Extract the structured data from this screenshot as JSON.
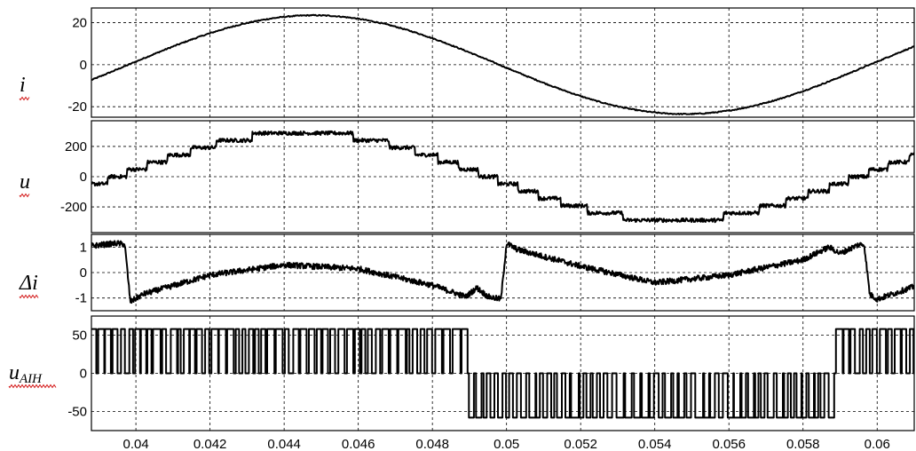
{
  "chart_data": {
    "type": "line",
    "x_range": [
      0.0388,
      0.061
    ],
    "x_ticks": [
      0.04,
      0.042,
      0.044,
      0.046,
      0.048,
      0.05,
      0.052,
      0.054,
      0.056,
      0.058,
      0.06
    ],
    "x_tick_labels": [
      "0.04",
      "0.042",
      "0.044",
      "0.046",
      "0.048",
      "0.05",
      "0.052",
      "0.054",
      "0.056",
      "0.058",
      "0.06"
    ],
    "grid": true,
    "panels": [
      {
        "label": "i",
        "label_sub": "",
        "ylim": [
          -25,
          27
        ],
        "y_ticks": [
          20,
          0,
          -20
        ],
        "y_tick_labels": [
          "20",
          "0",
          "-20"
        ],
        "series": [
          {
            "kind": "sine",
            "amplitude": 23.5,
            "frequency_hz": 50,
            "zero_crossing": 0.0398,
            "ripple": 0.5
          }
        ]
      },
      {
        "label": "u",
        "label_sub": "",
        "ylim": [
          -370,
          370
        ],
        "y_ticks": [
          200,
          0,
          -200
        ],
        "y_tick_labels": [
          "200",
          "0",
          "-200"
        ],
        "series": [
          {
            "kind": "staircase",
            "amplitude": 290,
            "frequency_hz": 50,
            "zero_crossing": 0.0395,
            "step": 48,
            "ripple": 25
          }
        ]
      },
      {
        "label": "Δi",
        "label_sub": "",
        "ylim": [
          -1.5,
          1.5
        ],
        "y_ticks": [
          1,
          0,
          -1
        ],
        "y_tick_labels": [
          "1",
          "0",
          "-1"
        ],
        "series": [
          {
            "kind": "ripple",
            "points": [
              [
                0.0388,
                1.05
              ],
              [
                0.0395,
                1.15
              ],
              [
                0.0397,
                1.1
              ],
              [
                0.03985,
                -1.15
              ],
              [
                0.0402,
                -0.85
              ],
              [
                0.042,
                -0.1
              ],
              [
                0.044,
                0.3
              ],
              [
                0.046,
                0.15
              ],
              [
                0.048,
                -0.5
              ],
              [
                0.0489,
                -0.95
              ],
              [
                0.0492,
                -0.6
              ],
              [
                0.0495,
                -0.95
              ],
              [
                0.04985,
                -1.05
              ],
              [
                0.05,
                1.15
              ],
              [
                0.0503,
                0.9
              ],
              [
                0.052,
                0.25
              ],
              [
                0.054,
                -0.4
              ],
              [
                0.056,
                -0.1
              ],
              [
                0.058,
                0.5
              ],
              [
                0.0587,
                1.0
              ],
              [
                0.059,
                0.75
              ],
              [
                0.0595,
                1.1
              ],
              [
                0.05965,
                1.1
              ],
              [
                0.0598,
                -0.85
              ],
              [
                0.06,
                -1.05
              ],
              [
                0.061,
                -0.55
              ]
            ],
            "band": 0.22
          }
        ]
      },
      {
        "label": "u",
        "label_sub": "AIH",
        "ylim": [
          -75,
          75
        ],
        "y_ticks": [
          50,
          0,
          -50
        ],
        "y_tick_labels": [
          "50",
          "0",
          "-50"
        ],
        "series": [
          {
            "kind": "pwm",
            "levels": [
              -58,
              0,
              58
            ],
            "switching_period": 0.0002,
            "positive_segments": [
              [
                0.0388,
                0.0488
              ],
              [
                0.0587,
                0.061
              ]
            ],
            "negative_segments": [
              [
                0.0489,
                0.0587
              ]
            ]
          }
        ]
      }
    ]
  }
}
